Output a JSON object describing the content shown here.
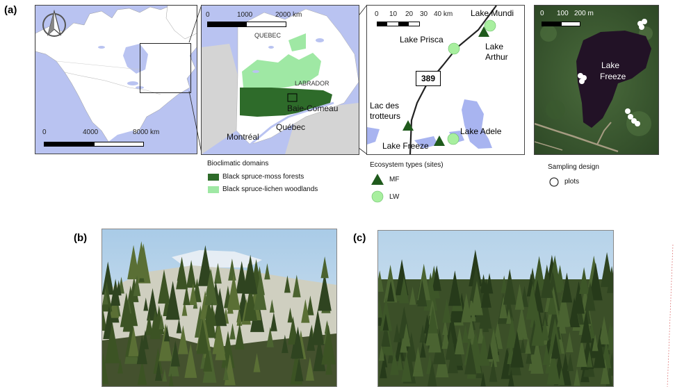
{
  "panels": {
    "a": "(a)",
    "b": "(b)",
    "c": "(c)"
  },
  "map1": {
    "scale_labels": [
      "0",
      "4000",
      "8000 km"
    ]
  },
  "map2": {
    "scale_labels": [
      "0",
      "1000",
      "2000 km"
    ],
    "places": {
      "quebec_region": "QUEBEC",
      "labrador": "LABRADOR",
      "baie_comeau": "Baie-Comeau",
      "montreal": "Montréal",
      "quebec_city": "Québec"
    }
  },
  "map3": {
    "scale_labels": [
      "0",
      "10",
      "20",
      "30",
      "40 km"
    ],
    "road": "389",
    "sites": {
      "mundi": "Lake Mundi",
      "prisca": "Lake Prisca",
      "arthur_1": "Lake",
      "arthur_2": "Arthur",
      "trotteurs_1": "Lac des",
      "trotteurs_2": "trotteurs",
      "adele": "Lake Adele",
      "freeze": "Lake Freeze"
    }
  },
  "map4": {
    "scale_labels": [
      "0",
      "100",
      "200 m"
    ],
    "lake_1": "Lake",
    "lake_2": "Freeze"
  },
  "legend": {
    "bioclimatic_title": "Bioclimatic domains",
    "moss": "Black spruce-moss forests",
    "lichen": "Black spruce-lichen woodlands",
    "ecosystem_title": "Ecosystem types (sites)",
    "mf": "MF",
    "lw": "LW",
    "sampling_title": "Sampling design",
    "plots": "plots"
  },
  "colors": {
    "moss_forest": "#2e6b2a",
    "lichen_woodland": "#9fe8a4",
    "lake_blue": "#a8b4f0",
    "lw_marker": "#a8ef9f",
    "mf_marker": "#1f5a1c"
  },
  "icons": {
    "north_arrow": "north-arrow-icon"
  }
}
